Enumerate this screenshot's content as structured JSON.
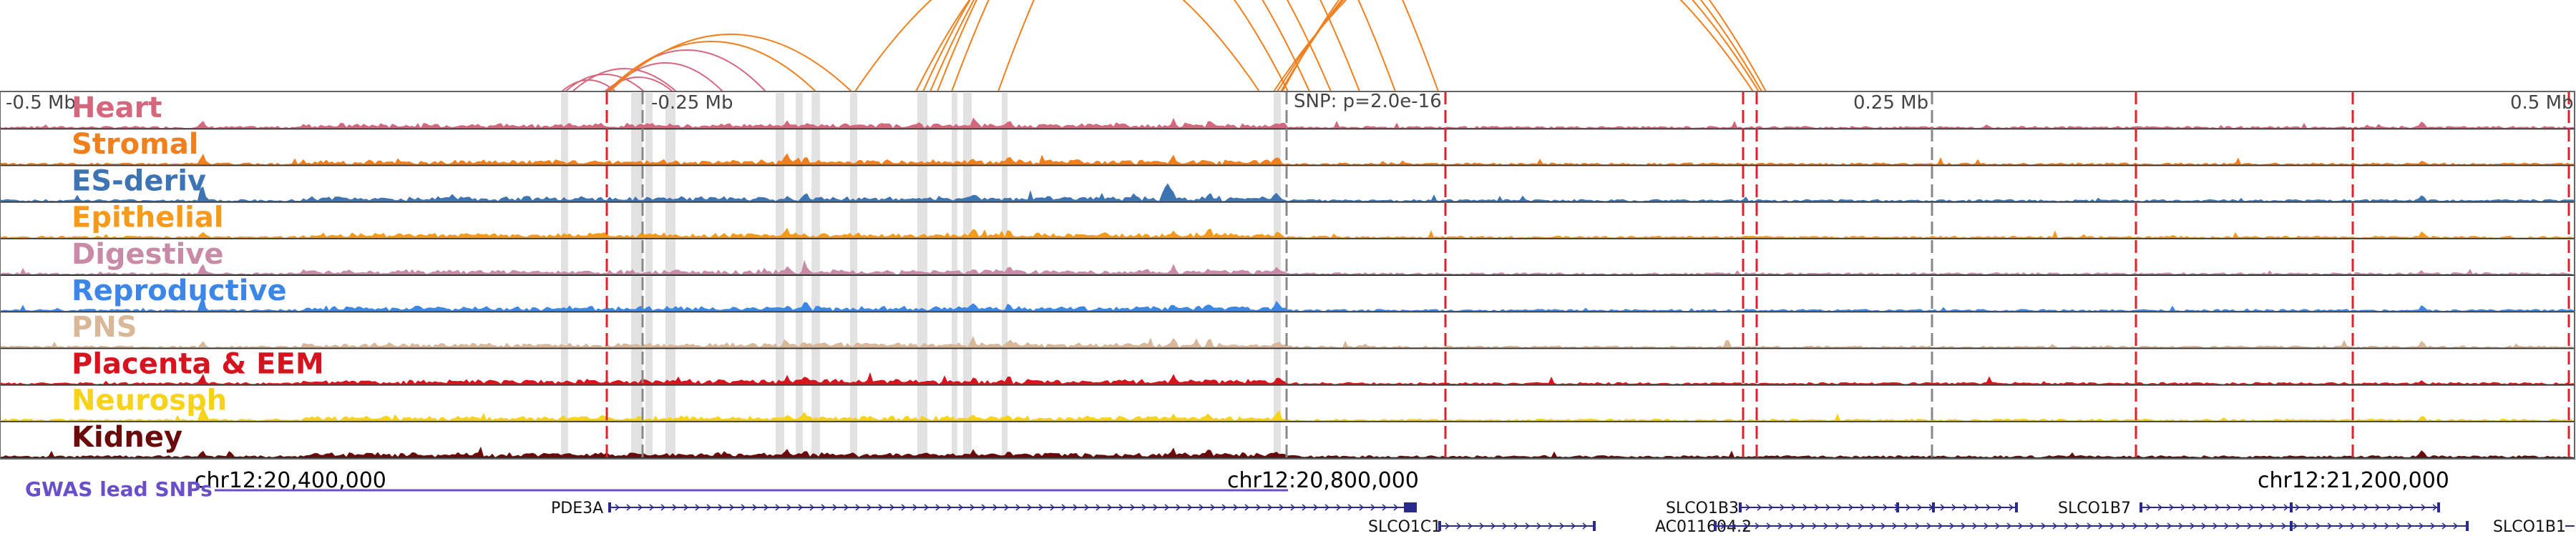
{
  "browser": {
    "scale_labels": [
      "-0.5 Mb",
      "-0.25 Mb",
      "0.25 Mb",
      "0.5 Mb"
    ],
    "snp_annotation": "SNP: p=2.0e-16",
    "coordinates": [
      "chr12:20,400,000",
      "chr12:20,800,000",
      "chr12:21,200,000"
    ],
    "gwas_label": "GWAS lead SNPs",
    "tracks": [
      {
        "name": "Heart",
        "color": "#d4677e"
      },
      {
        "name": "Stromal",
        "color": "#f07f1e"
      },
      {
        "name": "ES-deriv",
        "color": "#3f74b3"
      },
      {
        "name": "Epithelial",
        "color": "#f59a1c"
      },
      {
        "name": "Digestive",
        "color": "#c98aa8"
      },
      {
        "name": "Reproductive",
        "color": "#3c86e8"
      },
      {
        "name": "PNS",
        "color": "#d9b89a"
      },
      {
        "name": "Placenta & EEM",
        "color": "#d6141f"
      },
      {
        "name": "Neurosph",
        "color": "#f5d31a"
      },
      {
        "name": "Kidney",
        "color": "#6b0a0a"
      }
    ],
    "genes": [
      {
        "name": "PDE3A"
      },
      {
        "name": "SLCO1C1"
      },
      {
        "name": "SLCO1B3"
      },
      {
        "name": "AC011604.2"
      },
      {
        "name": "SLCO1B7"
      },
      {
        "name": "SLCO1B1"
      }
    ],
    "colors": {
      "arc_orange": "#f07f1e",
      "arc_pink": "#d4677e",
      "snp_red": "#e0202a",
      "snp_grey": "#888888",
      "highlight": "#dddddd",
      "gene_blue": "#2a2a8c",
      "gwas_purple": "#6a4fc9"
    }
  }
}
